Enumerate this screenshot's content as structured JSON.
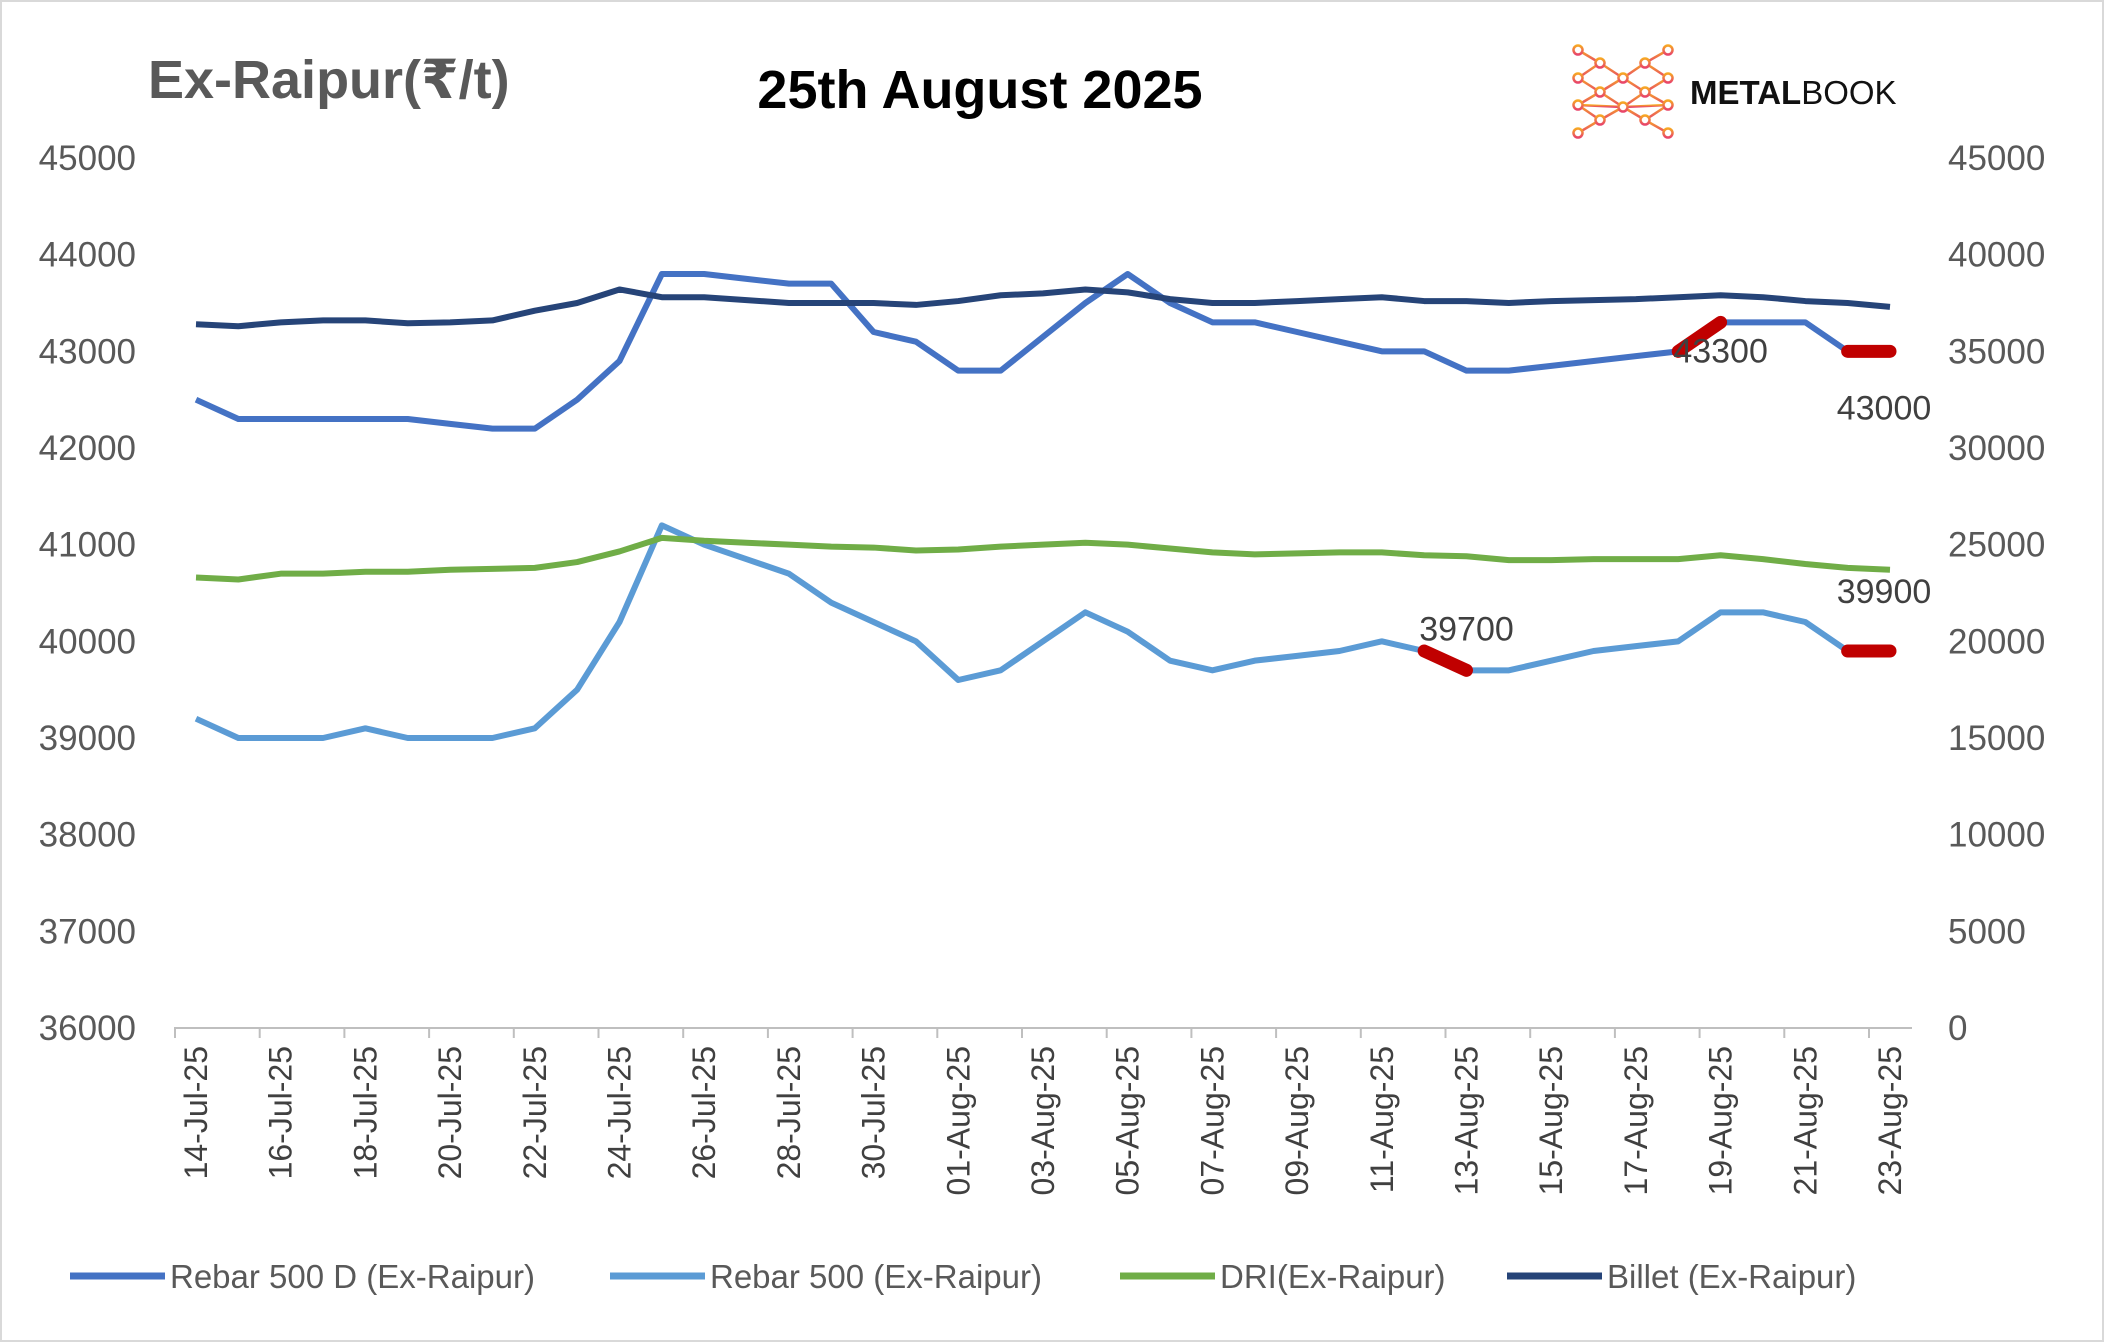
{
  "chart_data": {
    "type": "line",
    "title": "25th August 2025",
    "ylabel": "Ex-Raipur(₹/t)",
    "logo_text": "METALBOOK",
    "x": [
      "14-Jul-25",
      "15-Jul-25",
      "16-Jul-25",
      "17-Jul-25",
      "18-Jul-25",
      "19-Jul-25",
      "20-Jul-25",
      "21-Jul-25",
      "22-Jul-25",
      "23-Jul-25",
      "24-Jul-25",
      "25-Jul-25",
      "26-Jul-25",
      "27-Jul-25",
      "28-Jul-25",
      "29-Jul-25",
      "30-Jul-25",
      "31-Jul-25",
      "01-Aug-25",
      "02-Aug-25",
      "03-Aug-25",
      "04-Aug-25",
      "05-Aug-25",
      "06-Aug-25",
      "07-Aug-25",
      "08-Aug-25",
      "09-Aug-25",
      "10-Aug-25",
      "11-Aug-25",
      "12-Aug-25",
      "13-Aug-25",
      "14-Aug-25",
      "15-Aug-25",
      "16-Aug-25",
      "17-Aug-25",
      "18-Aug-25",
      "19-Aug-25",
      "20-Aug-25",
      "21-Aug-25",
      "22-Aug-25",
      "23-Aug-25"
    ],
    "x_tick_labels": [
      "14-Jul-25",
      "16-Jul-25",
      "18-Jul-25",
      "20-Jul-25",
      "22-Jul-25",
      "24-Jul-25",
      "26-Jul-25",
      "28-Jul-25",
      "30-Jul-25",
      "01-Aug-25",
      "03-Aug-25",
      "05-Aug-25",
      "07-Aug-25",
      "09-Aug-25",
      "11-Aug-25",
      "13-Aug-25",
      "15-Aug-25",
      "17-Aug-25",
      "19-Aug-25",
      "21-Aug-25",
      "23-Aug-25"
    ],
    "y_left": {
      "range": [
        36000,
        45000
      ],
      "ticks": [
        "36000",
        "37000",
        "38000",
        "39000",
        "40000",
        "41000",
        "42000",
        "43000",
        "44000",
        "45000"
      ]
    },
    "y_right": {
      "range": [
        0,
        45000
      ],
      "ticks": [
        "0",
        "5000",
        "10000",
        "15000",
        "20000",
        "25000",
        "30000",
        "35000",
        "40000",
        "45000"
      ]
    },
    "grid": false,
    "legend_position": "bottom",
    "series": [
      {
        "name": "Rebar 500 D (Ex-Raipur)",
        "axis": "left",
        "color": "#4472C4",
        "values": [
          42500,
          42300,
          42300,
          42300,
          42300,
          42300,
          42250,
          42200,
          42200,
          42500,
          42900,
          43800,
          43800,
          43750,
          43700,
          43700,
          43200,
          43100,
          42800,
          42800,
          43150,
          43500,
          43800,
          43500,
          43300,
          43300,
          43200,
          43100,
          43000,
          43000,
          42800,
          42800,
          42850,
          42900,
          42950,
          43000,
          43300,
          43300,
          43300,
          43000,
          43000
        ],
        "highlights": [
          [
            35,
            36
          ],
          [
            39,
            40
          ]
        ]
      },
      {
        "name": "Rebar 500 (Ex-Raipur)",
        "axis": "left",
        "color": "#5B9BD5",
        "values": [
          39200,
          39000,
          39000,
          39000,
          39100,
          39000,
          39000,
          39000,
          39100,
          39500,
          40200,
          41200,
          41000,
          40850,
          40700,
          40400,
          40200,
          40000,
          39600,
          39700,
          40000,
          40300,
          40100,
          39800,
          39700,
          39800,
          39850,
          39900,
          40000,
          39900,
          39700,
          39700,
          39800,
          39900,
          39950,
          40000,
          40300,
          40300,
          40200,
          39900,
          39900
        ],
        "highlights": [
          [
            29,
            30
          ],
          [
            39,
            40
          ]
        ]
      },
      {
        "name": "DRI(Ex-Raipur)",
        "axis": "right",
        "color": "#70AD47",
        "values": [
          23300,
          23200,
          23500,
          23500,
          23600,
          23600,
          23700,
          23750,
          23800,
          24100,
          24650,
          25350,
          25200,
          25100,
          25000,
          24900,
          24850,
          24700,
          24750,
          24900,
          25000,
          25100,
          25000,
          24800,
          24600,
          24500,
          24550,
          24600,
          24600,
          24450,
          24400,
          24200,
          24200,
          24250,
          24250,
          24250,
          24450,
          24250,
          24000,
          23800,
          23700
        ]
      },
      {
        "name": "Billet (Ex-Raipur)",
        "axis": "right",
        "color": "#264478",
        "values": [
          36400,
          36300,
          36500,
          36600,
          36600,
          36450,
          36500,
          36600,
          37100,
          37500,
          38200,
          37800,
          37800,
          37650,
          37500,
          37500,
          37500,
          37400,
          37600,
          37900,
          38000,
          38200,
          38050,
          37700,
          37500,
          37500,
          37600,
          37700,
          37800,
          37600,
          37600,
          37500,
          37600,
          37650,
          37700,
          37800,
          37900,
          37800,
          37600,
          37500,
          37300
        ]
      }
    ],
    "highlight_color": "#C00000",
    "annotations": [
      {
        "text": "43300",
        "series": 0,
        "x": "19-Aug-25"
      },
      {
        "text": "43000",
        "series": 0,
        "x": "23-Aug-25"
      },
      {
        "text": "39700",
        "series": 1,
        "x": "13-Aug-25"
      },
      {
        "text": "39900",
        "series": 1,
        "x": "23-Aug-25"
      }
    ]
  }
}
